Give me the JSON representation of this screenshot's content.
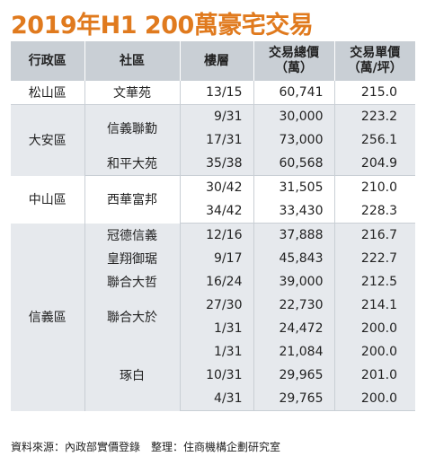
{
  "title": "2019年H1 200萬豪宅交易",
  "headers": {
    "district": "行政區",
    "community": "社區",
    "floor": "樓層",
    "total_l1": "交易總價",
    "total_l2": "（萬）",
    "unit_l1": "交易單價",
    "unit_l2": "（萬/坪）"
  },
  "groups": [
    {
      "district": "松山區",
      "shade": "white",
      "rows": [
        {
          "community": "文華苑",
          "floor": "13/15",
          "total": "60,741",
          "unit": "215.0"
        }
      ]
    },
    {
      "district": "大安區",
      "shade": "gray",
      "rows": [
        {
          "community": "信義聯勤",
          "floor": "9/31",
          "total": "30,000",
          "unit": "223.2"
        },
        {
          "community": "",
          "floor": "17/31",
          "total": "73,000",
          "unit": "256.1"
        },
        {
          "community": "和平大苑",
          "floor": "35/38",
          "total": "60,568",
          "unit": "204.9"
        }
      ]
    },
    {
      "district": "中山區",
      "shade": "white",
      "rows": [
        {
          "community": "西華富邦",
          "floor": "30/42",
          "total": "31,505",
          "unit": "210.0"
        },
        {
          "community": "",
          "floor": "34/42",
          "total": "33,430",
          "unit": "228.3"
        }
      ]
    },
    {
      "district": "信義區",
      "shade": "gray",
      "rows": [
        {
          "community": "冠德信義",
          "floor": "12/16",
          "total": "37,888",
          "unit": "216.7"
        },
        {
          "community": "皇翔御琚",
          "floor": "9/17",
          "total": "45,843",
          "unit": "222.7"
        },
        {
          "community": "聯合大哲",
          "floor": "16/24",
          "total": "39,000",
          "unit": "212.5"
        },
        {
          "community": "聯合大於",
          "floor": "27/30",
          "total": "22,730",
          "unit": "214.1"
        },
        {
          "community": "",
          "floor": "1/31",
          "total": "24,472",
          "unit": "200.0"
        },
        {
          "community": "琢白",
          "floor": "1/31",
          "total": "21,084",
          "unit": "200.0"
        },
        {
          "community": "",
          "floor": "10/31",
          "total": "29,965",
          "unit": "201.0"
        },
        {
          "community": "",
          "floor": "4/31",
          "total": "29,765",
          "unit": "200.0"
        }
      ]
    }
  ],
  "footer": "資料來源：內政部實價登錄　整理：住商機構企劃研究室"
}
